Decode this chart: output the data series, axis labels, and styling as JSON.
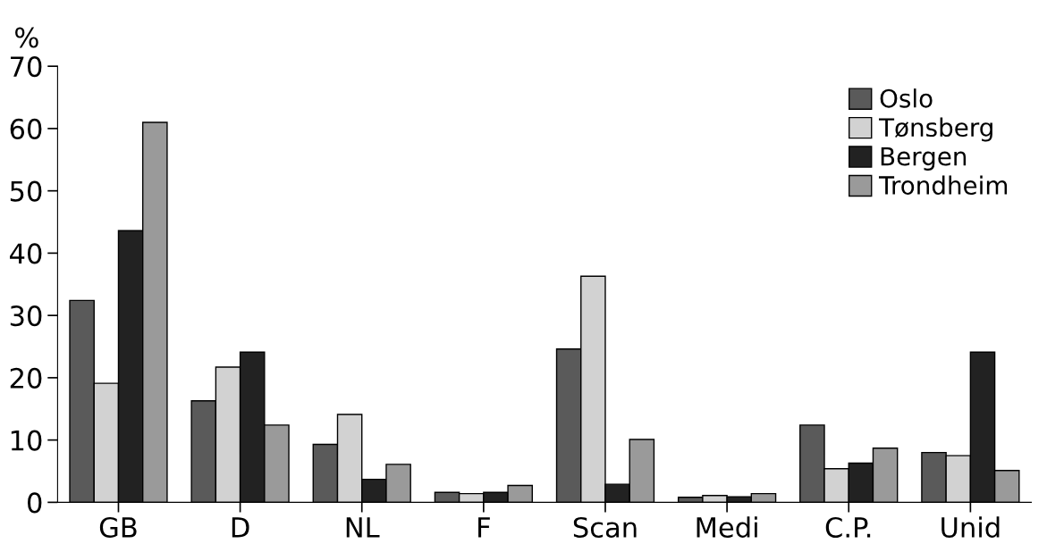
{
  "chart_data": {
    "type": "bar",
    "ylabel": "%",
    "categories": [
      "GB",
      "D",
      "NL",
      "F",
      "Scan",
      "Medi",
      "C.P.",
      "Unid"
    ],
    "series": [
      {
        "name": "Oslo",
        "color": "#5a5a5a",
        "values": [
          32.4,
          16.3,
          9.3,
          1.6,
          24.6,
          0.8,
          12.4,
          8.0
        ]
      },
      {
        "name": "Tønsberg",
        "color": "#d2d2d2",
        "values": [
          19.1,
          21.7,
          14.1,
          1.4,
          36.3,
          1.1,
          5.4,
          7.5
        ]
      },
      {
        "name": "Bergen",
        "color": "#222222",
        "values": [
          43.6,
          24.1,
          3.7,
          1.6,
          2.9,
          0.9,
          6.3,
          24.1
        ]
      },
      {
        "name": "Trondheim",
        "color": "#9a9a9a",
        "values": [
          61.0,
          12.4,
          6.1,
          2.7,
          10.1,
          1.4,
          8.7,
          5.1
        ]
      }
    ],
    "ylim": [
      0,
      70
    ],
    "yticks": [
      0,
      10,
      20,
      30,
      40,
      50,
      60,
      70
    ],
    "grid": false,
    "legend": "top right"
  }
}
